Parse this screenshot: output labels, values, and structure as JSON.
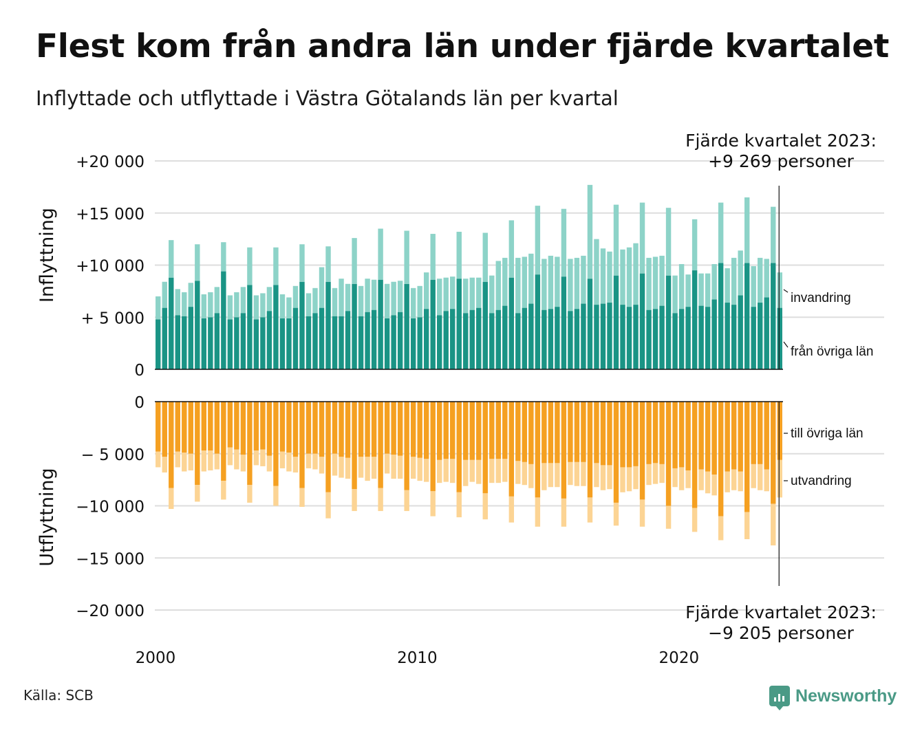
{
  "header": {
    "title": "Flest kom från andra län under fjärde kvartalet",
    "subtitle": "Inflyttade och utflyttade i Västra Götalands län per kvartal"
  },
  "footer": {
    "source": "Källa: SCB",
    "brand": "Newsworthy"
  },
  "colors": {
    "in_domestic": "#1a9485",
    "in_immigration": "#8dd3c8",
    "out_domestic": "#f5a021",
    "out_emigration": "#fcd494",
    "grid": "#dddddd",
    "brand": "#4a9a86"
  },
  "chart_data": {
    "type": "bar",
    "stacked": true,
    "grid": true,
    "x_start": "2000 Q1",
    "x_end": "2023 Q4",
    "x_tick_labels": [
      "2000",
      "2010",
      "2020"
    ],
    "top_panel": {
      "ylabel": "Inflyttning",
      "ylim": [
        0,
        20000
      ],
      "y_tick_labels": [
        "0",
        "+ 5 000",
        "+10 000",
        "+15 000",
        "+20 000"
      ],
      "series": [
        {
          "name": "från övriga län",
          "color": "#1a9485",
          "values": [
            4800,
            5900,
            8800,
            5200,
            5100,
            6000,
            8500,
            4900,
            5000,
            5400,
            9400,
            4800,
            5000,
            5400,
            8100,
            4800,
            5000,
            5600,
            8100,
            4900,
            4900,
            5900,
            8400,
            5100,
            5400,
            5900,
            8400,
            5100,
            5100,
            5600,
            8200,
            5100,
            5500,
            5700,
            8600,
            4900,
            5200,
            5500,
            8200,
            4900,
            5000,
            5800,
            8600,
            5200,
            5600,
            5800,
            8700,
            5400,
            5700,
            5900,
            8400,
            5400,
            5700,
            6100,
            8800,
            5400,
            5900,
            6300,
            9100,
            5700,
            5800,
            6000,
            8900,
            5600,
            5800,
            6300,
            8700,
            6200,
            6300,
            6400,
            9000,
            6200,
            6000,
            6200,
            9200,
            5700,
            5800,
            6100,
            9000,
            5400,
            5800,
            6000,
            9500,
            6100,
            6000,
            6700,
            10200,
            6400,
            6200,
            7100,
            10200,
            6000,
            6400,
            6900,
            10200,
            5900
          ]
        },
        {
          "name": "invandring",
          "color": "#8dd3c8",
          "values": [
            2200,
            2500,
            3600,
            2500,
            2300,
            2300,
            3500,
            2300,
            2400,
            2500,
            2800,
            2300,
            2400,
            2500,
            3600,
            2300,
            2300,
            2300,
            3600,
            2300,
            2000,
            2100,
            3600,
            2200,
            2400,
            3900,
            3400,
            2700,
            3600,
            2600,
            4400,
            2900,
            3200,
            2900,
            4900,
            3300,
            3200,
            3000,
            5100,
            2900,
            3000,
            3500,
            4400,
            3500,
            3200,
            3100,
            4500,
            3300,
            3100,
            2900,
            4700,
            3600,
            4700,
            4600,
            5500,
            5300,
            4900,
            4800,
            6600,
            4900,
            5100,
            4800,
            6500,
            5000,
            4900,
            4600,
            9000,
            6300,
            5300,
            4900,
            6800,
            5300,
            5700,
            5900,
            6800,
            5000,
            5000,
            4800,
            6500,
            3600,
            4300,
            3100,
            4900,
            3100,
            3200,
            3400,
            5800,
            3300,
            4500,
            4300,
            6300,
            3900,
            4300,
            3700,
            5400,
            3400
          ]
        }
      ]
    },
    "bottom_panel": {
      "ylabel": "Utflyttning",
      "ylim": [
        -20000,
        0
      ],
      "y_tick_labels": [
        "0",
        "− 5 000",
        "−10 000",
        "−15 000",
        "−20 000"
      ],
      "series": [
        {
          "name": "till övriga län",
          "color": "#f5a021",
          "values": [
            -4800,
            -5300,
            -8300,
            -4800,
            -4900,
            -5000,
            -8000,
            -4700,
            -4700,
            -5000,
            -7600,
            -4400,
            -4600,
            -5100,
            -8000,
            -4700,
            -4600,
            -5200,
            -8100,
            -4800,
            -4900,
            -5300,
            -8300,
            -5000,
            -5000,
            -5300,
            -8700,
            -5000,
            -5300,
            -5400,
            -8400,
            -5300,
            -5300,
            -5300,
            -8300,
            -5000,
            -5100,
            -5200,
            -8500,
            -5300,
            -5400,
            -5500,
            -8600,
            -5600,
            -5500,
            -5500,
            -8700,
            -5600,
            -5600,
            -5600,
            -8800,
            -5500,
            -5500,
            -5500,
            -9100,
            -5700,
            -5800,
            -6000,
            -9200,
            -5900,
            -5900,
            -5900,
            -9300,
            -5800,
            -5800,
            -5800,
            -9200,
            -5900,
            -6100,
            -6100,
            -9700,
            -6300,
            -6300,
            -6200,
            -9400,
            -6000,
            -5900,
            -6000,
            -10000,
            -6400,
            -6300,
            -6600,
            -10200,
            -6500,
            -6700,
            -7000,
            -11000,
            -6700,
            -6500,
            -6700,
            -10600,
            -6000,
            -6000,
            -6500,
            -9800,
            -5600
          ]
        },
        {
          "name": "utvandring",
          "color": "#fcd494",
          "values": [
            -1500,
            -1500,
            -2000,
            -1500,
            -1800,
            -1600,
            -1600,
            -2000,
            -1900,
            -1500,
            -1800,
            -1700,
            -1900,
            -1600,
            -1700,
            -1400,
            -1600,
            -1500,
            -1900,
            -1600,
            -1800,
            -1500,
            -1800,
            -1400,
            -1500,
            -1600,
            -2500,
            -2100,
            -2000,
            -2000,
            -2100,
            -2000,
            -2300,
            -2100,
            -2200,
            -1900,
            -2300,
            -2200,
            -2000,
            -2100,
            -2200,
            -2200,
            -2400,
            -2200,
            -2200,
            -2300,
            -2400,
            -2500,
            -2100,
            -2300,
            -2500,
            -2300,
            -2300,
            -2200,
            -2500,
            -2200,
            -2200,
            -2300,
            -2800,
            -2600,
            -2300,
            -2300,
            -2700,
            -2200,
            -2300,
            -2300,
            -2400,
            -2300,
            -2400,
            -2300,
            -2200,
            -2400,
            -2300,
            -2200,
            -2600,
            -2000,
            -2000,
            -1800,
            -2200,
            -1800,
            -2200,
            -1700,
            -2300,
            -2000,
            -2100,
            -2000,
            -2300,
            -2000,
            -2000,
            -1900,
            -2600,
            -2300,
            -2500,
            -2100,
            -4000,
            -3600
          ]
        }
      ]
    },
    "annotations": {
      "top_line1": "Fjärde kvartalet 2023:",
      "top_line2": "+9 269 personer",
      "bottom_line1": "Fjärde kvartalet 2023:",
      "bottom_line2": "−9 205 personer"
    }
  }
}
